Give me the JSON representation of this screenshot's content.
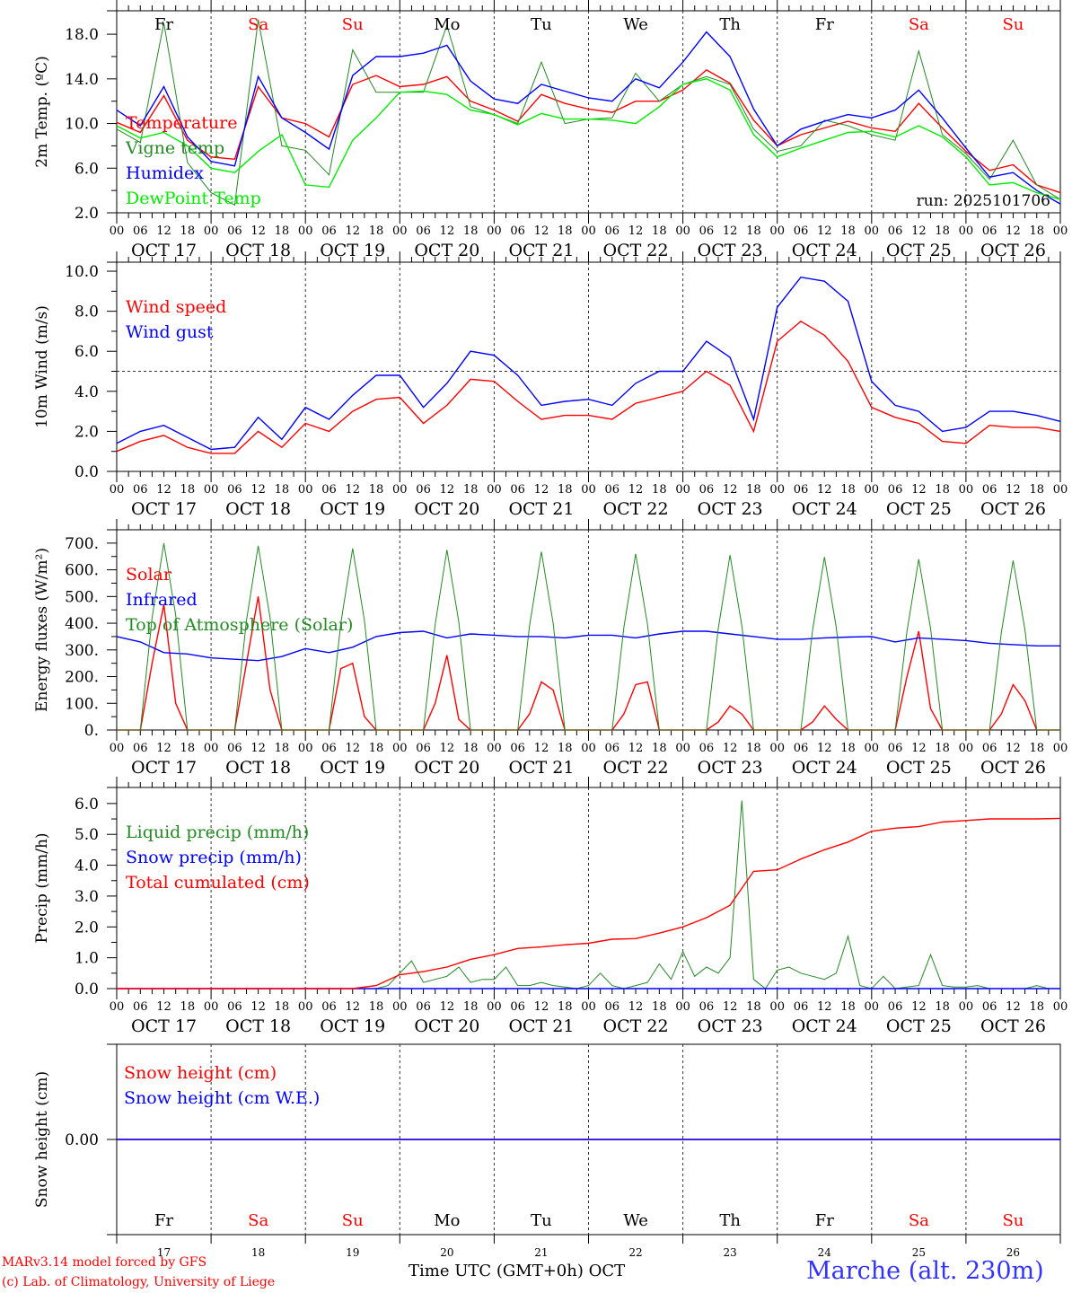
{
  "chart_data": {
    "type": "line",
    "start": "OCT 17 00 UTC",
    "step_hours_6": 6,
    "step_hours_3": 3,
    "day_names": [
      "Fr",
      "Sa",
      "Su",
      "Mo",
      "Tu",
      "We",
      "Th",
      "Fr",
      "Sa",
      "Su"
    ],
    "weekend_color": "#ff0000",
    "hour_labels": [
      "00",
      "06",
      "12",
      "18"
    ],
    "date_labels": [
      "OCT 17",
      "OCT 18",
      "OCT 19",
      "OCT 20",
      "OCT 21",
      "OCT 22",
      "OCT 23",
      "OCT 24",
      "OCT 25",
      "OCT 26"
    ],
    "last_hour_label": "00",
    "day_numbers": [
      "17",
      "18",
      "19",
      "20",
      "21",
      "22",
      "23",
      "24",
      "25",
      "26"
    ],
    "panels": [
      {
        "ylabel": "2m Temp. (ºC)",
        "ylim": [
          2,
          20.1
        ],
        "yticks": [
          2,
          6,
          10,
          14,
          18
        ],
        "ytick_labels": [
          "2.0",
          "6.0",
          "10.0",
          "14.0",
          "18.0"
        ],
        "run_label": "run: 2025101706",
        "series": [
          {
            "name": "Temperature",
            "color": "#ff0000",
            "step": 6,
            "values": [
              10.1,
              9.2,
              12.5,
              8.5,
              7.0,
              6.8,
              13.3,
              10.5,
              10.0,
              8.8,
              13.5,
              14.3,
              13.3,
              13.5,
              14.2,
              12.0,
              11.2,
              10.2,
              12.6,
              11.8,
              11.3,
              11.0,
              12.0,
              12.0,
              13.0,
              14.8,
              13.6,
              10.3,
              8.0,
              9.0,
              9.6,
              10.2,
              9.6,
              9.3,
              11.8,
              9.6,
              7.5,
              5.8,
              6.3,
              4.5,
              3.8
            ]
          },
          {
            "name": "Vigne temp",
            "color": "#228b22",
            "step": 6,
            "values": [
              9.5,
              8.3,
              19.0,
              6.5,
              3.8,
              2.7,
              19.3,
              8.0,
              7.6,
              5.4,
              16.6,
              12.8,
              12.8,
              12.8,
              18.8,
              11.5,
              10.8,
              10.0,
              15.5,
              10.0,
              10.4,
              10.5,
              14.5,
              12.0,
              13.5,
              14.2,
              13.5,
              9.5,
              7.5,
              8.0,
              10.3,
              9.8,
              9.0,
              8.5,
              16.5,
              9.0,
              7.3,
              5.0,
              8.5,
              4.5,
              3.2
            ]
          },
          {
            "name": "Humidex",
            "color": "#0000ff",
            "step": 6,
            "values": [
              11.2,
              9.8,
              13.3,
              8.8,
              6.6,
              6.2,
              14.2,
              10.5,
              9.2,
              7.7,
              14.3,
              16.0,
              16.0,
              16.3,
              17.0,
              13.8,
              12.2,
              11.8,
              13.5,
              12.9,
              12.3,
              12.0,
              14.0,
              13.2,
              15.5,
              18.2,
              16.0,
              11.3,
              8.0,
              9.5,
              10.2,
              10.8,
              10.5,
              11.2,
              13.0,
              10.5,
              7.8,
              5.2,
              5.6,
              4.0,
              2.8
            ]
          },
          {
            "name": "DewPoint Temp",
            "color": "#00ee00",
            "step": 6,
            "values": [
              9.8,
              8.7,
              9.2,
              8.0,
              6.0,
              5.6,
              7.5,
              9.0,
              4.5,
              4.3,
              8.5,
              10.5,
              12.8,
              12.9,
              12.6,
              11.2,
              10.8,
              9.9,
              10.9,
              10.4,
              10.4,
              10.3,
              10.0,
              11.5,
              13.5,
              14.0,
              13.0,
              9.0,
              7.0,
              7.8,
              8.5,
              9.2,
              9.3,
              8.8,
              9.8,
              8.8,
              7.0,
              4.5,
              4.7,
              3.8,
              3.2
            ]
          }
        ]
      },
      {
        "ylabel": "10m Wind (m/s)",
        "ylim": [
          0,
          10.45
        ],
        "yticks": [
          0,
          2,
          4,
          6,
          8,
          10
        ],
        "ytick_labels": [
          "0.0",
          "2.0",
          "4.0",
          "6.0",
          "8.0",
          "10.0"
        ],
        "reference_line": 5,
        "series": [
          {
            "name": "Wind speed",
            "color": "#ff0000",
            "step": 6,
            "values": [
              1.0,
              1.5,
              1.8,
              1.2,
              0.9,
              0.9,
              2.0,
              1.2,
              2.4,
              2.0,
              3.0,
              3.6,
              3.7,
              2.4,
              3.3,
              4.6,
              4.5,
              3.5,
              2.6,
              2.8,
              2.8,
              2.6,
              3.4,
              3.7,
              4.0,
              5.0,
              4.3,
              2.0,
              6.5,
              7.5,
              6.8,
              5.5,
              3.2,
              2.7,
              2.4,
              1.5,
              1.4,
              2.3,
              2.2,
              2.2,
              2.0
            ]
          },
          {
            "name": "Wind gust",
            "color": "#0000ff",
            "step": 6,
            "values": [
              1.4,
              2.0,
              2.3,
              1.7,
              1.1,
              1.2,
              2.7,
              1.6,
              3.2,
              2.6,
              3.8,
              4.8,
              4.8,
              3.2,
              4.4,
              6.0,
              5.8,
              4.8,
              3.3,
              3.5,
              3.6,
              3.3,
              4.4,
              5.0,
              5.0,
              6.5,
              5.7,
              2.6,
              8.2,
              9.7,
              9.5,
              8.5,
              4.5,
              3.3,
              3.0,
              2.0,
              2.2,
              3.0,
              3.0,
              2.8,
              2.5
            ]
          }
        ]
      },
      {
        "ylabel": "Energy fluxes (W/m²)",
        "ylim": [
          0,
          750
        ],
        "yticks": [
          0,
          100,
          200,
          300,
          400,
          500,
          600,
          700
        ],
        "ytick_labels": [
          "0.",
          "100.",
          "200.",
          "300.",
          "400.",
          "500.",
          "600.",
          "700."
        ],
        "series": [
          {
            "name": "Solar",
            "color": "#ff0000",
            "step": 3,
            "values": [
              0,
              0,
              0,
              250,
              470,
              100,
              0,
              0,
              0,
              0,
              0,
              250,
              500,
              150,
              0,
              0,
              0,
              0,
              0,
              230,
              250,
              50,
              0,
              0,
              0,
              0,
              0,
              100,
              280,
              40,
              0,
              0,
              0,
              0,
              0,
              60,
              180,
              150,
              0,
              0,
              0,
              0,
              0,
              60,
              170,
              180,
              0,
              0,
              0,
              0,
              0,
              30,
              90,
              60,
              0,
              0,
              0,
              0,
              0,
              30,
              90,
              40,
              0,
              0,
              0,
              0,
              0,
              200,
              370,
              80,
              0,
              0,
              0,
              0,
              0,
              60,
              170,
              110,
              0,
              0,
              0
            ]
          },
          {
            "name": "Infrared",
            "color": "#0000ff",
            "step": 6,
            "values": [
              350,
              330,
              290,
              285,
              270,
              265,
              260,
              275,
              305,
              290,
              310,
              350,
              365,
              370,
              345,
              360,
              355,
              350,
              350,
              345,
              355,
              355,
              345,
              360,
              370,
              370,
              360,
              350,
              340,
              340,
              345,
              348,
              350,
              330,
              345,
              340,
              335,
              325,
              320,
              315,
              315
            ]
          },
          {
            "name": "Top of Atmosphere (Solar)",
            "color": "#228b22",
            "step": 3,
            "values": [
              0,
              0,
              0,
              420,
              700,
              430,
              0,
              0,
              0,
              0,
              0,
              410,
              690,
              420,
              0,
              0,
              0,
              0,
              0,
              400,
              680,
              410,
              0,
              0,
              0,
              0,
              0,
              395,
              675,
              405,
              0,
              0,
              0,
              0,
              0,
              390,
              668,
              400,
              0,
              0,
              0,
              0,
              0,
              385,
              660,
              395,
              0,
              0,
              0,
              0,
              0,
              380,
              655,
              390,
              0,
              0,
              0,
              0,
              0,
              375,
              648,
              385,
              0,
              0,
              0,
              0,
              0,
              370,
              640,
              380,
              0,
              0,
              0,
              0,
              0,
              365,
              635,
              375,
              0,
              0,
              0
            ]
          }
        ]
      },
      {
        "ylabel": "Precip (mm/h)",
        "ylim": [
          0,
          6.52
        ],
        "yticks": [
          0,
          1,
          2,
          3,
          4,
          5,
          6
        ],
        "ytick_labels": [
          "0.0",
          "1.0",
          "2.0",
          "3.0",
          "4.0",
          "5.0",
          "6.0"
        ],
        "series": [
          {
            "name": "Liquid precip (mm/h)",
            "color": "#228b22",
            "step": 3,
            "values": [
              0,
              0,
              0,
              0,
              0,
              0,
              0,
              0,
              0,
              0,
              0,
              0,
              0,
              0,
              0,
              0,
              0,
              0,
              0,
              0,
              0,
              0,
              0,
              0.1,
              0.5,
              0.9,
              0.2,
              0.3,
              0.4,
              0.7,
              0.2,
              0.3,
              0.3,
              0.7,
              0.1,
              0.1,
              0.2,
              0.1,
              0.05,
              0,
              0.1,
              0.5,
              0.1,
              0,
              0.1,
              0.2,
              0.8,
              0.3,
              1.2,
              0.4,
              0.7,
              0.5,
              1.0,
              6.1,
              0.3,
              0,
              0.6,
              0.7,
              0.5,
              0.4,
              0.3,
              0.5,
              1.7,
              0.1,
              0,
              0.4,
              0,
              0.05,
              0.1,
              1.1,
              0.1,
              0.05,
              0.05,
              0.1,
              0,
              0,
              0,
              0,
              0.1,
              0,
              0
            ]
          },
          {
            "name": "Snow precip (mm/h)",
            "color": "#0000ff",
            "step": 6,
            "values": [
              0,
              0,
              0,
              0,
              0,
              0,
              0,
              0,
              0,
              0,
              0,
              0,
              0,
              0,
              0,
              0,
              0,
              0,
              0,
              0,
              0,
              0,
              0,
              0,
              0,
              0,
              0,
              0,
              0,
              0,
              0,
              0,
              0,
              0,
              0,
              0,
              0,
              0,
              0,
              0,
              0
            ]
          },
          {
            "name": "Total cumulated (cm)",
            "color": "#ff0000",
            "step": 6,
            "values": [
              0,
              0,
              0,
              0,
              0,
              0,
              0,
              0,
              0,
              0,
              0,
              0.1,
              0.45,
              0.55,
              0.7,
              0.95,
              1.1,
              1.3,
              1.35,
              1.42,
              1.47,
              1.6,
              1.62,
              1.8,
              2.0,
              2.3,
              2.7,
              3.8,
              3.85,
              4.2,
              4.5,
              4.75,
              5.1,
              5.2,
              5.25,
              5.4,
              5.45,
              5.5,
              5.5,
              5.5,
              5.52
            ]
          }
        ]
      },
      {
        "ylabel": "Snow height (cm)",
        "ylim": [
          -1,
          1
        ],
        "yticks": [
          0
        ],
        "ytick_labels": [
          "0.00"
        ],
        "series": [
          {
            "name": "Snow height (cm)",
            "color": "#ff0000",
            "step": 6,
            "values": [
              0,
              0,
              0,
              0,
              0,
              0,
              0,
              0,
              0,
              0,
              0,
              0,
              0,
              0,
              0,
              0,
              0,
              0,
              0,
              0,
              0,
              0,
              0,
              0,
              0,
              0,
              0,
              0,
              0,
              0,
              0,
              0,
              0,
              0,
              0,
              0,
              0,
              0,
              0,
              0,
              0
            ]
          },
          {
            "name": "Snow height (cm W.E.)",
            "color": "#0000ff",
            "step": 6,
            "values": [
              0,
              0,
              0,
              0,
              0,
              0,
              0,
              0,
              0,
              0,
              0,
              0,
              0,
              0,
              0,
              0,
              0,
              0,
              0,
              0,
              0,
              0,
              0,
              0,
              0,
              0,
              0,
              0,
              0,
              0,
              0,
              0,
              0,
              0,
              0,
              0,
              0,
              0,
              0,
              0,
              0
            ]
          }
        ]
      }
    ]
  },
  "footer": {
    "model_credit": "MARv3.14 model forced by GFS",
    "copyright": "(c) Lab. of Climatology, University of Liege",
    "xlabel": "Time UTC (GMT+0h) OCT",
    "station": "Marche (alt. 230m)"
  }
}
